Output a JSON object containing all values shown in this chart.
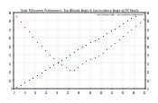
{
  "title": "Solar PV/Inverter Performance  Sun Altitude Angle & Sun Incidence Angle on PV Panels",
  "legend_labels": [
    "Sun Altitude Angle",
    "Sun Incidence Angle on PV"
  ],
  "legend_colors": [
    "#0000cc",
    "#cc0000"
  ],
  "bg_color": "#ffffff",
  "grid_color": "#bbbbbb",
  "ylim": [
    0,
    90
  ],
  "xlim": [
    0,
    96
  ],
  "sun_altitude_x": [
    2,
    5,
    8,
    11,
    14,
    17,
    20,
    23,
    26,
    29,
    32,
    35,
    38,
    41,
    44,
    47,
    50,
    53,
    56,
    59,
    62,
    65,
    68,
    71,
    74,
    77,
    80,
    83,
    86,
    89,
    92,
    95
  ],
  "sun_altitude_y": [
    2,
    4,
    7,
    10,
    13,
    16,
    19,
    22,
    25,
    28,
    31,
    34,
    37,
    40,
    43,
    46,
    49,
    52,
    55,
    57,
    59,
    62,
    65,
    68,
    71,
    74,
    77,
    80,
    83,
    85,
    87,
    89
  ],
  "sun_incidence_x": [
    2,
    5,
    8,
    11,
    14,
    17,
    20,
    23,
    26,
    29,
    32,
    35,
    38,
    41,
    44,
    47,
    50,
    53,
    56,
    59,
    62,
    65,
    68,
    71,
    74,
    77,
    80,
    83,
    86,
    89,
    92,
    95
  ],
  "sun_incidence_y": [
    85,
    79,
    73,
    67,
    61,
    55,
    50,
    45,
    40,
    36,
    32,
    28,
    25,
    22,
    22,
    25,
    29,
    33,
    35,
    37,
    39,
    42,
    46,
    50,
    54,
    58,
    62,
    66,
    70,
    74,
    78,
    82
  ]
}
